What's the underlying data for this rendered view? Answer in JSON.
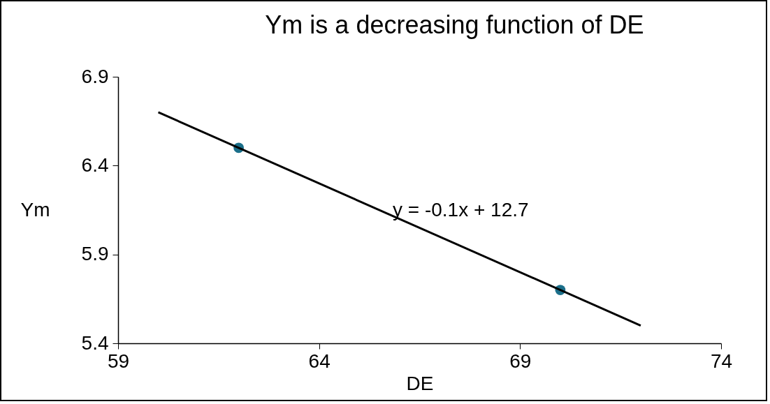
{
  "chart_data": {
    "type": "scatter",
    "title": "Ym is a decreasing function of DE",
    "xlabel": "DE",
    "ylabel": "Ym",
    "xlim": [
      59,
      74
    ],
    "xticks": [
      59,
      64,
      69,
      74
    ],
    "ylim": [
      5.4,
      6.9
    ],
    "yticks": [
      5.4,
      5.9,
      6.4,
      6.9
    ],
    "grid": false,
    "marker": "circle",
    "line_style": "solid",
    "series": [
      {
        "color": "#1b6f8a",
        "x": [
          62,
          70
        ],
        "values": [
          6.5,
          5.7
        ]
      },
      {
        "type": "line",
        "marker": "none",
        "color": "#000000",
        "x": [
          60,
          72
        ],
        "values": [
          6.7,
          5.5
        ]
      }
    ],
    "annotations": [
      "y = -0.1x + 12.7"
    ]
  }
}
